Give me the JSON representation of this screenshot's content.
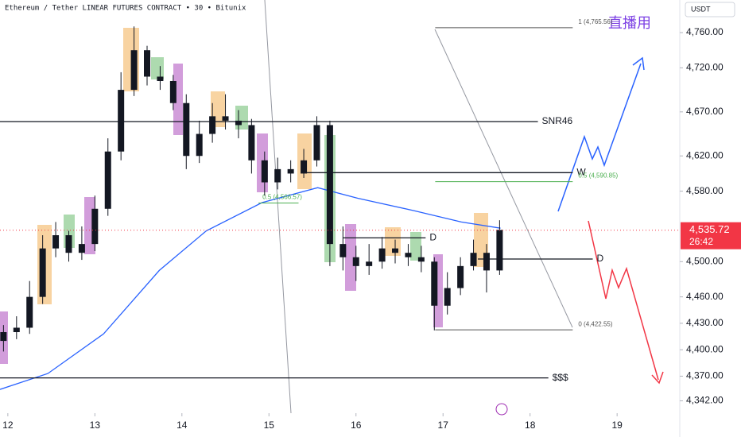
{
  "chart_data": {
    "type": "candlestick",
    "title": "Ethereum / Tether LINEAR FUTURES CONTRACT • 30 • Bitunix",
    "currency": "USDT",
    "watermark": "直播用",
    "up_color": "#131722",
    "down_color": "#131722",
    "x": [
      11.95,
      12.1,
      12.25,
      12.4,
      12.55,
      12.7,
      12.85,
      13.0,
      13.15,
      13.3,
      13.45,
      13.6,
      13.75,
      13.9,
      14.05,
      14.2,
      14.35,
      14.5,
      14.65,
      14.8,
      14.95,
      15.1,
      15.25,
      15.4,
      15.55,
      15.7,
      15.85,
      16.0,
      16.15,
      16.3,
      16.45,
      16.6,
      16.75,
      16.9,
      17.05,
      17.2,
      17.35,
      17.5,
      17.65
    ],
    "open": [
      4410,
      4420,
      4425,
      4460,
      4515,
      4530,
      4510,
      4520,
      4560,
      4625,
      4695,
      4740,
      4710,
      4705,
      4680,
      4620,
      4645,
      4665,
      4660,
      4655,
      4615,
      4590,
      4605,
      4600,
      4615,
      4655,
      4520,
      4505,
      4495,
      4500,
      4515,
      4510,
      4505,
      4500,
      4450,
      4470,
      4495,
      4510,
      4490
    ],
    "high": [
      4428,
      4438,
      4478,
      4530,
      4545,
      4535,
      4540,
      4575,
      4640,
      4715,
      4767,
      4745,
      4722,
      4712,
      4690,
      4660,
      4680,
      4690,
      4672,
      4662,
      4625,
      4618,
      4615,
      4628,
      4665,
      4660,
      4540,
      4518,
      4520,
      4528,
      4525,
      4520,
      4518,
      4505,
      4488,
      4505,
      4525,
      4520,
      4547
    ],
    "low": [
      4398,
      4412,
      4418,
      4452,
      4505,
      4500,
      4502,
      4512,
      4552,
      4615,
      4688,
      4700,
      4695,
      4672,
      4605,
      4612,
      4635,
      4650,
      4640,
      4600,
      4575,
      4582,
      4590,
      4595,
      4608,
      4495,
      4490,
      4478,
      4485,
      4492,
      4498,
      4495,
      4488,
      4422,
      4440,
      4462,
      4490,
      4465,
      4485
    ],
    "close": [
      4420,
      4425,
      4460,
      4515,
      4530,
      4510,
      4520,
      4560,
      4625,
      4695,
      4740,
      4710,
      4705,
      4680,
      4620,
      4645,
      4665,
      4660,
      4655,
      4615,
      4590,
      4605,
      4600,
      4615,
      4655,
      4520,
      4505,
      4495,
      4500,
      4515,
      4510,
      4505,
      4500,
      4450,
      4470,
      4495,
      4510,
      4490,
      4536
    ],
    "xlim": [
      11.91,
      19.72
    ],
    "xticks": [
      12,
      13,
      14,
      15,
      16,
      17,
      18,
      19
    ],
    "ylim": [
      4328,
      4797
    ],
    "yticks": [
      {
        "value": 4760,
        "label": "4,760.00"
      },
      {
        "value": 4720,
        "label": "4,720.00"
      },
      {
        "value": 4670,
        "label": "4,670.00"
      },
      {
        "value": 4620,
        "label": "4,620.00"
      },
      {
        "value": 4580,
        "label": "4,580.00"
      },
      {
        "value": 4500,
        "label": "4,500.00"
      },
      {
        "value": 4460,
        "label": "4,460.00"
      },
      {
        "value": 4430,
        "label": "4,430.00"
      },
      {
        "value": 4400,
        "label": "4,400.00"
      },
      {
        "value": 4370,
        "label": "4,370.00"
      },
      {
        "value": 4342,
        "label": "4,342.00"
      }
    ],
    "ma": {
      "color": "#2962ff",
      "x": [
        11.91,
        12.46,
        13.1,
        13.74,
        14.28,
        14.92,
        15.56,
        16.02,
        16.66,
        17.21,
        17.66
      ],
      "values": [
        4355,
        4373,
        4418,
        4490,
        4535,
        4567,
        4584,
        4572,
        4558,
        4545,
        4538
      ]
    },
    "levels": [
      {
        "value": 4659,
        "label": "SNR46",
        "start": 11.91,
        "end": 18.09
      },
      {
        "value": 4601,
        "label": "W",
        "start": 15.38,
        "end": 18.49
      },
      {
        "value": 4527,
        "label": "D",
        "start": 15.85,
        "end": 16.8
      },
      {
        "value": 4503,
        "label": "D",
        "start": 17.4,
        "end": 18.72
      },
      {
        "value": 4368,
        "label": "$$$",
        "start": 11.91,
        "end": 18.21
      }
    ],
    "fib": [
      {
        "value": 4765.56,
        "label": "1 (4,765.56)",
        "start": 16.91,
        "end": 18.49,
        "color": "#555555"
      },
      {
        "value": 4590.85,
        "label": "0.5 (4,590.85)",
        "start": 16.91,
        "end": 18.49,
        "color": "#4caf50"
      },
      {
        "value": 4422.55,
        "label": "0 (4,422.55)",
        "start": 16.91,
        "end": 18.49,
        "color": "#555555"
      },
      {
        "value": 4566.57,
        "label": "0.5 (4,566.57)",
        "start": 14.88,
        "end": 15.34,
        "color": "#4caf50"
      }
    ],
    "last_price": {
      "value": 4535.72,
      "label": "4,535.72",
      "countdown": "26:42",
      "color": "#f23645"
    }
  }
}
